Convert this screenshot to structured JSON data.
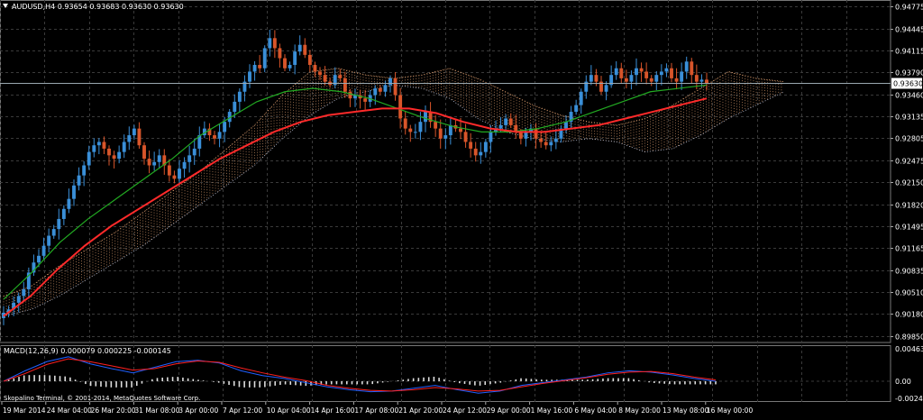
{
  "main_header": "AUDUSD,H4  0.93654 0.93683 0.93630 0.93630",
  "macd_header": "MACD(12,26,9) 0.000079 0.000225 -0.000145",
  "copyright": "Skopalino Terminal, © 2001-2014, MetaQuotes Software Corp.",
  "current_price_label": "0.93630",
  "colors": {
    "background": "#000000",
    "grid": "#3a3a3a",
    "bull_candle": "#3a8fd8",
    "bear_candle": "#d8552a",
    "red_ma": "#ff2a2a",
    "green_ma": "#22aa22",
    "cloud_bull": "#e0a070",
    "cloud_bear": "#c0c8e0",
    "macd_line": "#2060ff",
    "signal_line": "#ff2020",
    "histogram": "#dddddd",
    "axis_text": "#ffffff",
    "price_line": "#9aa8b0"
  },
  "chart_data": [
    {
      "type": "candlestick",
      "title": "AUDUSD,H4",
      "ohlc_last": {
        "open": 0.93654,
        "high": 0.93683,
        "low": 0.9363,
        "close": 0.9363
      },
      "y_ticks": [
        "0.94775",
        "0.94445",
        "0.94115",
        "0.93790",
        "0.93460",
        "0.93135",
        "0.92805",
        "0.92475",
        "0.92150",
        "0.91820",
        "0.91495",
        "0.91165",
        "0.90835",
        "0.90510",
        "0.90180",
        "0.89850"
      ],
      "ylim": [
        0.8985,
        0.94775
      ],
      "x_ticks": [
        "19 Mar 2014",
        "24 Mar 04:00",
        "26 Mar 20:00",
        "31 Mar 08:00",
        "3 Apr 00:00",
        "7 Apr 12:00",
        "10 Apr 04:00",
        "14 Apr 16:00",
        "17 Apr 08:00",
        "21 Apr 20:00",
        "24 Apr 12:00",
        "29 Apr 00:00",
        "1 May 16:00",
        "6 May 04:00",
        "8 May 20:00",
        "13 May 08:00",
        "16 May 00:00"
      ],
      "close_path": [
        0.902,
        0.9025,
        0.9035,
        0.9045,
        0.9055,
        0.908,
        0.9095,
        0.9105,
        0.912,
        0.9135,
        0.9145,
        0.916,
        0.9175,
        0.919,
        0.921,
        0.9225,
        0.924,
        0.926,
        0.927,
        0.9275,
        0.9265,
        0.9255,
        0.925,
        0.926,
        0.9275,
        0.9285,
        0.9295,
        0.927,
        0.925,
        0.924,
        0.9245,
        0.9255,
        0.924,
        0.9225,
        0.922,
        0.9235,
        0.9245,
        0.9255,
        0.9265,
        0.9285,
        0.9295,
        0.9285,
        0.928,
        0.929,
        0.9305,
        0.932,
        0.9335,
        0.935,
        0.9365,
        0.938,
        0.939,
        0.9385,
        0.9415,
        0.943,
        0.9415,
        0.94,
        0.9385,
        0.939,
        0.941,
        0.942,
        0.9405,
        0.939,
        0.938,
        0.9375,
        0.9365,
        0.936,
        0.9375,
        0.937,
        0.935,
        0.934,
        0.9345,
        0.934,
        0.9335,
        0.9345,
        0.9355,
        0.935,
        0.936,
        0.937,
        0.9345,
        0.931,
        0.9295,
        0.929,
        0.929,
        0.9305,
        0.932,
        0.9305,
        0.9295,
        0.928,
        0.9285,
        0.93,
        0.9295,
        0.929,
        0.9275,
        0.9265,
        0.9255,
        0.926,
        0.9275,
        0.929,
        0.9295,
        0.93,
        0.931,
        0.93,
        0.929,
        0.928,
        0.929,
        0.9295,
        0.928,
        0.9275,
        0.927,
        0.9275,
        0.928,
        0.9295,
        0.9305,
        0.932,
        0.933,
        0.935,
        0.9365,
        0.9375,
        0.9365,
        0.935,
        0.936,
        0.9375,
        0.9385,
        0.937,
        0.9365,
        0.9375,
        0.9385,
        0.938,
        0.937,
        0.9365,
        0.9375,
        0.938,
        0.9385,
        0.937,
        0.9365,
        0.938,
        0.9395,
        0.9375,
        0.9365,
        0.9368,
        0.9363
      ],
      "moving_average_red": [
        0.9015,
        0.9045,
        0.9085,
        0.912,
        0.915,
        0.9175,
        0.92,
        0.9225,
        0.925,
        0.927,
        0.929,
        0.9305,
        0.9315,
        0.932,
        0.9325,
        0.9325,
        0.9318,
        0.9305,
        0.9295,
        0.929,
        0.929,
        0.9295,
        0.93,
        0.931,
        0.932,
        0.933,
        0.934
      ],
      "moving_average_green": [
        0.904,
        0.908,
        0.9125,
        0.916,
        0.919,
        0.922,
        0.925,
        0.9285,
        0.931,
        0.9335,
        0.935,
        0.9355,
        0.935,
        0.934,
        0.9325,
        0.931,
        0.9298,
        0.929,
        0.929,
        0.9295,
        0.9305,
        0.932,
        0.9335,
        0.935,
        0.9355,
        0.936
      ],
      "cloud_upper": [
        0.9045,
        0.906,
        0.909,
        0.9115,
        0.914,
        0.917,
        0.92,
        0.923,
        0.9265,
        0.93,
        0.9345,
        0.938,
        0.9385,
        0.9375,
        0.937,
        0.9375,
        0.9385,
        0.937,
        0.935,
        0.933,
        0.9315,
        0.9305,
        0.93,
        0.931,
        0.933,
        0.9355,
        0.938,
        0.937,
        0.9365
      ],
      "cloud_lower": [
        0.9015,
        0.9025,
        0.9045,
        0.907,
        0.9095,
        0.912,
        0.915,
        0.918,
        0.921,
        0.924,
        0.928,
        0.9315,
        0.934,
        0.935,
        0.936,
        0.9355,
        0.934,
        0.931,
        0.929,
        0.928,
        0.9275,
        0.928,
        0.9275,
        0.926,
        0.9265,
        0.9285,
        0.931,
        0.933,
        0.935
      ]
    },
    {
      "type": "macd",
      "title": "MACD(12,26,9)",
      "values": {
        "macd": 7.9e-05,
        "signal": 0.000225,
        "histogram": -0.000145
      },
      "y_ticks": [
        "0.004637",
        "0.00",
        "-0.002447"
      ],
      "ylim": [
        -0.002447,
        0.004637
      ],
      "macd_path": [
        0.0,
        0.0015,
        0.0028,
        0.0035,
        0.0025,
        0.0018,
        0.0012,
        0.002,
        0.0028,
        0.003,
        0.0026,
        0.0015,
        0.0008,
        0.0004,
        -0.0002,
        -0.0008,
        -0.0012,
        -0.0015,
        -0.0014,
        -0.001,
        -0.0006,
        -0.0012,
        -0.0017,
        -0.0014,
        -0.0006,
        -0.0002,
        0.0002,
        0.0006,
        0.0012,
        0.0015,
        0.0013,
        0.0009,
        0.0004,
        0.0
      ],
      "signal_path": [
        0.0,
        0.0011,
        0.0024,
        0.0032,
        0.0028,
        0.0022,
        0.0016,
        0.0018,
        0.0025,
        0.0029,
        0.0027,
        0.0019,
        0.0012,
        0.0006,
        0.0001,
        -0.0006,
        -0.001,
        -0.0013,
        -0.0014,
        -0.0012,
        -0.0009,
        -0.0011,
        -0.0014,
        -0.0013,
        -0.0008,
        -0.0003,
        0.0001,
        0.0005,
        0.001,
        0.0013,
        0.0014,
        0.0011,
        0.0006,
        0.0002
      ]
    }
  ]
}
